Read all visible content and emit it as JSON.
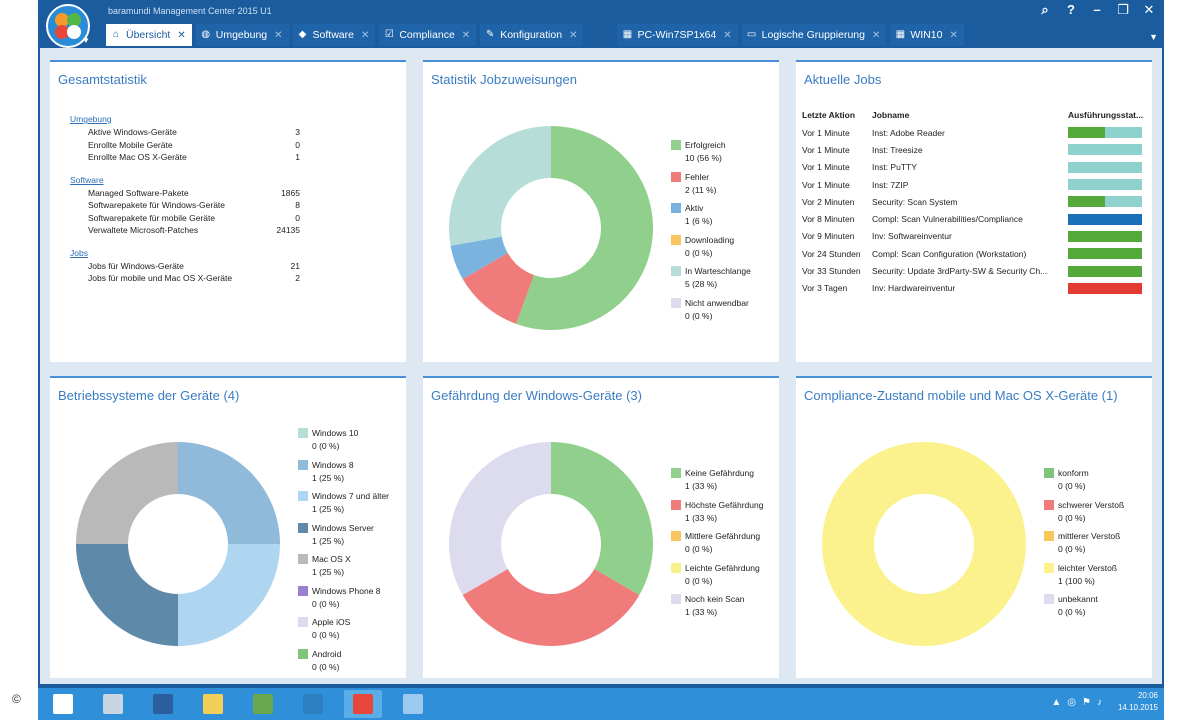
{
  "app_title": "baramundi Management Center 2015 U1",
  "window_controls": [
    "⌕",
    "?",
    "–",
    "❐",
    "✕"
  ],
  "tabs": [
    {
      "label": "Übersicht",
      "icon": "home-icon",
      "glyph": "⌂",
      "active": true
    },
    {
      "label": "Umgebung",
      "icon": "globe-icon",
      "glyph": "◍"
    },
    {
      "label": "Software",
      "icon": "software-icon",
      "glyph": "◆"
    },
    {
      "label": "Compliance",
      "icon": "checkbox-icon",
      "glyph": "☑"
    },
    {
      "label": "Konfiguration",
      "icon": "wrench-icon",
      "glyph": "✎"
    },
    {
      "label": "PC-Win7SP1x64",
      "icon": "pc-icon",
      "glyph": "▦"
    },
    {
      "label": "Logische Gruppierung",
      "icon": "folder-icon",
      "glyph": "▭"
    },
    {
      "label": "WIN10",
      "icon": "pc-icon",
      "glyph": "▦"
    }
  ],
  "panels": {
    "gesamtstatistik": {
      "title": "Gesamtstatistik",
      "sections": [
        {
          "heading": "Umgebung",
          "rows": [
            {
              "label": "Aktive Windows-Geräte",
              "value": "3"
            },
            {
              "label": "Enrollte Mobile Geräte",
              "value": "0"
            },
            {
              "label": "Enrollte Mac OS X-Geräte",
              "value": "1"
            }
          ]
        },
        {
          "heading": "Software",
          "rows": [
            {
              "label": "Managed Software-Pakete",
              "value": "1865"
            },
            {
              "label": "Softwarepakete für Windows-Geräte",
              "value": "8"
            },
            {
              "label": "Softwarepakete für mobile Geräte",
              "value": "0"
            },
            {
              "label": "Verwaltete Microsoft-Patches",
              "value": "24135"
            }
          ]
        },
        {
          "heading": "Jobs",
          "rows": [
            {
              "label": "Jobs für Windows-Geräte",
              "value": "21"
            },
            {
              "label": "Jobs für mobile und Mac OS X-Geräte",
              "value": "2"
            }
          ]
        }
      ]
    },
    "jobzuweisungen": {
      "title": "Statistik Jobzuweisungen",
      "segments": [
        {
          "label": "Erfolgreich",
          "count": "10 (56 %)",
          "value": 10,
          "color": "#90cf8c"
        },
        {
          "label": "Fehler",
          "count": "2 (11 %)",
          "value": 2,
          "color": "#ef7b7b"
        },
        {
          "label": "Aktiv",
          "count": "1 (6 %)",
          "value": 1,
          "color": "#7ab4de"
        },
        {
          "label": "Downloading",
          "count": "0 (0 %)",
          "value": 0,
          "color": "#f7c75e"
        },
        {
          "label": "In Warteschlange",
          "count": "5 (28 %)",
          "value": 5,
          "color": "#b7ddd9"
        },
        {
          "label": "Nicht anwendbar",
          "count": "0 (0 %)",
          "value": 0,
          "color": "#dcdcee"
        }
      ]
    },
    "aktuelle_jobs": {
      "title": "Aktuelle Jobs",
      "columns": [
        "Letzte Aktion",
        "Jobname",
        "Ausführungsstat..."
      ],
      "rows": [
        {
          "action": "Vor 1 Minute",
          "name": "Inst: Adobe Reader",
          "fill": 0.5,
          "color": "#55a83a"
        },
        {
          "action": "Vor 1 Minute",
          "name": "Inst: Treesize",
          "fill": 0,
          "color": "#55a83a"
        },
        {
          "action": "Vor 1 Minute",
          "name": "Inst: PuTTY",
          "fill": 0,
          "color": "#55a83a"
        },
        {
          "action": "Vor 1 Minute",
          "name": "Inst: 7ZIP",
          "fill": 0,
          "color": "#55a83a"
        },
        {
          "action": "Vor 2 Minuten",
          "name": "Security: Scan System",
          "fill": 0.5,
          "color": "#55a83a"
        },
        {
          "action": "Vor 8 Minuten",
          "name": "Compl: Scan Vulnerabilities/Compliance",
          "fill": 1,
          "color": "#1a6fb8"
        },
        {
          "action": "Vor 9 Minuten",
          "name": "Inv: Softwareinventur",
          "fill": 1,
          "color": "#55a83a"
        },
        {
          "action": "Vor 24 Stunden",
          "name": "Compl: Scan Configuration (Workstation)",
          "fill": 1,
          "color": "#55a83a"
        },
        {
          "action": "Vor 33 Stunden",
          "name": "Security: Update 3rdParty-SW & Security Ch...",
          "fill": 1,
          "color": "#55a83a"
        },
        {
          "action": "Vor 3 Tagen",
          "name": "Inv: Hardwareinventur",
          "fill": 1,
          "color": "#e23b32"
        }
      ]
    },
    "betriebssysteme": {
      "title": "Betriebssysteme der Geräte (4)",
      "segments": [
        {
          "label": "Windows 10",
          "count": "0 (0 %)",
          "value": 0,
          "color": "#b7ddd9"
        },
        {
          "label": "Windows 8",
          "count": "1 (25 %)",
          "value": 1,
          "color": "#8fbad9"
        },
        {
          "label": "Windows 7 und älter",
          "count": "1 (25 %)",
          "value": 1,
          "color": "#aed6f1"
        },
        {
          "label": "Windows Server",
          "count": "1 (25 %)",
          "value": 1,
          "color": "#5e89a8"
        },
        {
          "label": "Mac OS X",
          "count": "1 (25 %)",
          "value": 1,
          "color": "#b9b9b9"
        },
        {
          "label": "Windows Phone 8",
          "count": "0 (0 %)",
          "value": 0,
          "color": "#9b7fcf"
        },
        {
          "label": "Apple iOS",
          "count": "0 (0 %)",
          "value": 0,
          "color": "#dcdcee"
        },
        {
          "label": "Android",
          "count": "0 (0 %)",
          "value": 0,
          "color": "#80c37a"
        }
      ]
    },
    "gefaehrdung": {
      "title": "Gefährdung der Windows-Geräte (3)",
      "segments": [
        {
          "label": "Keine Gefährdung",
          "count": "1 (33 %)",
          "value": 1,
          "color": "#90cf8c"
        },
        {
          "label": "Höchste Gefährdung",
          "count": "1 (33 %)",
          "value": 1,
          "color": "#ef7b7b"
        },
        {
          "label": "Mittlere Gefährdung",
          "count": "0 (0 %)",
          "value": 0,
          "color": "#f7c75e"
        },
        {
          "label": "Leichte Gefährdung",
          "count": "0 (0 %)",
          "value": 0,
          "color": "#f7f28c"
        },
        {
          "label": "Noch kein Scan",
          "count": "1 (33 %)",
          "value": 1,
          "color": "#dcdcee"
        }
      ]
    },
    "compliance": {
      "title": "Compliance-Zustand mobile und Mac OS X-Geräte (1)",
      "segments": [
        {
          "label": "konform",
          "count": "0 (0 %)",
          "value": 0,
          "color": "#80c37a"
        },
        {
          "label": "schwerer Verstoß",
          "count": "0 (0 %)",
          "value": 0,
          "color": "#ef7b7b"
        },
        {
          "label": "mittlerer Verstoß",
          "count": "0 (0 %)",
          "value": 0,
          "color": "#f7c75e"
        },
        {
          "label": "leichter Verstoß",
          "count": "1 (100 %)",
          "value": 1,
          "color": "#fbf28e"
        },
        {
          "label": "unbekannt",
          "count": "0 (0 %)",
          "value": 0,
          "color": "#dcdcee"
        }
      ]
    }
  },
  "taskbar": {
    "apps": [
      {
        "name": "start-icon",
        "color": "#ffffff"
      },
      {
        "name": "server-manager-icon",
        "color": "#c9d6e2"
      },
      {
        "name": "powershell-icon",
        "color": "#2a5e9c"
      },
      {
        "name": "file-explorer-icon",
        "color": "#f2cf57"
      },
      {
        "name": "network-icon",
        "color": "#6aa84f"
      },
      {
        "name": "remote-desktop-icon",
        "color": "#2d7fc1"
      },
      {
        "name": "baramundi-icon",
        "color": "#e8463b"
      },
      {
        "name": "app-window-icon",
        "color": "#9cc9ef"
      }
    ],
    "time": "20:06",
    "date": "14.10.2015"
  },
  "copyright": "©"
}
